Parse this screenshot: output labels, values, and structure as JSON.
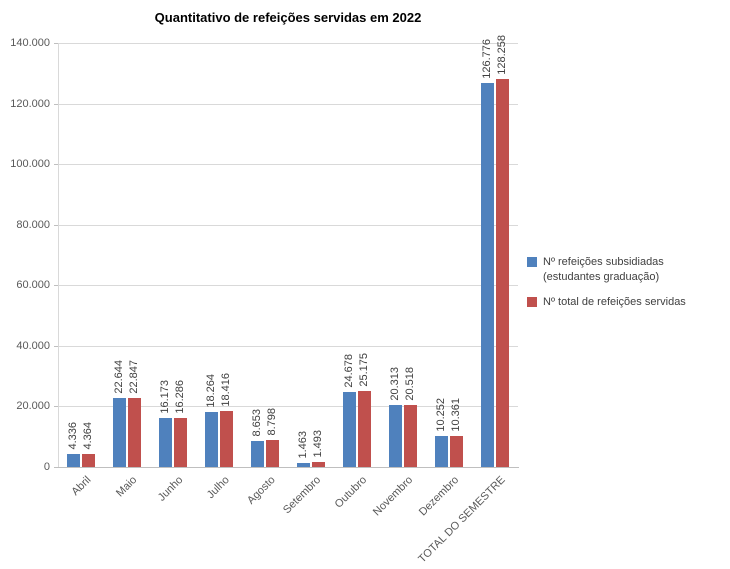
{
  "title": "Quantitativo de refeições servidas em 2022",
  "chart_data": {
    "type": "bar",
    "title": "Quantitativo de refeições servidas em 2022",
    "categories": [
      "Abril",
      "Maio",
      "Junho",
      "Julho",
      "Agosto",
      "Setembro",
      "Outubro",
      "Novembro",
      "Dezembro",
      "TOTAL DO SEMESTRE"
    ],
    "series": [
      {
        "name": "Nº refeições subsidiadas (estudantes graduação)",
        "color": "#4f81bd",
        "values": [
          4336,
          22644,
          16173,
          18264,
          8653,
          1463,
          24678,
          20313,
          10252,
          126776
        ],
        "labels": [
          "4.336",
          "22.644",
          "16.173",
          "18.264",
          "8.653",
          "1.463",
          "24.678",
          "20.313",
          "10.252",
          "126.776"
        ]
      },
      {
        "name": "Nº total de refeições servidas",
        "color": "#c0504d",
        "values": [
          4364,
          22847,
          16286,
          18416,
          8798,
          1493,
          25175,
          20518,
          10361,
          128258
        ],
        "labels": [
          "4.364",
          "22.847",
          "16.286",
          "18.416",
          "8.798",
          "1.493",
          "25.175",
          "20.518",
          "10.361",
          "128.258"
        ]
      }
    ],
    "ylim": [
      0,
      140000
    ],
    "yticks": [
      0,
      20000,
      40000,
      60000,
      80000,
      100000,
      120000,
      140000
    ],
    "ytick_labels": [
      "0",
      "20.000",
      "40.000",
      "60.000",
      "80.000",
      "100.000",
      "120.000",
      "140.000"
    ],
    "grid": true,
    "legend_position": "right",
    "xlabel": "",
    "ylabel": ""
  }
}
